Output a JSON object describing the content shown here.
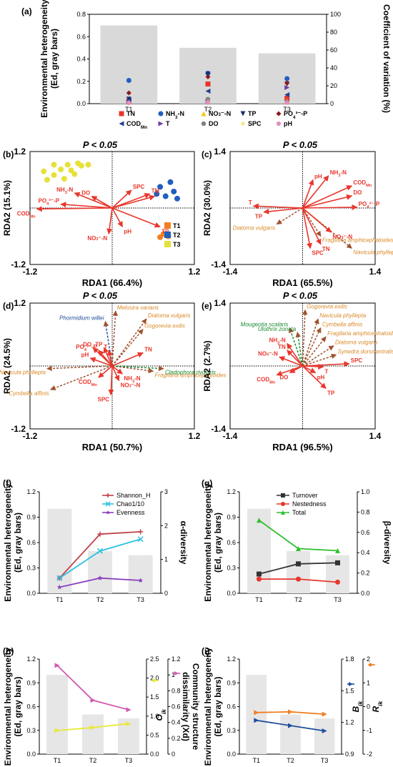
{
  "panels": {
    "a": {
      "label": "(a)"
    },
    "b": {
      "label": "(b)",
      "title": "P < 0.05"
    },
    "c": {
      "label": "(c)",
      "title": "P < 0.05"
    },
    "d": {
      "label": "(d)",
      "title": "P < 0.05"
    },
    "e": {
      "label": "(e)",
      "title": "P < 0.05"
    },
    "f": {
      "label": "(f)"
    },
    "g": {
      "label": "(g)"
    },
    "h": {
      "label": "(h)"
    },
    "i": {
      "label": "(i)"
    }
  },
  "colors": {
    "arrow_env": "#e8362b",
    "arrow_sp": "#a0522d",
    "sp_text": "#d98b2b",
    "blue_text": "#1f4e9c",
    "green_text": "#1a8a2e",
    "bar": "#d9d9d9"
  },
  "chart_data": [
    {
      "id": "a",
      "type": "bar",
      "categories": [
        "T1",
        "T2",
        "T3"
      ],
      "bar_values": [
        0.7,
        0.5,
        0.45
      ],
      "ylabel": "Environmental heterogeneity (Ed, gray bars)",
      "y2label": "Coefficient of variation (%)",
      "ylim": [
        0,
        0.8
      ],
      "yticks": [
        0,
        0.2,
        0.4,
        0.6,
        0.8
      ],
      "y2lim": [
        0,
        100
      ],
      "y2ticks": [
        0,
        20,
        40,
        60,
        80,
        100
      ],
      "series": [
        {
          "name": "TN",
          "color": "#e8362b",
          "marker": "square",
          "values": [
            3,
            22,
            6
          ]
        },
        {
          "name": "NH3-N",
          "color": "#1f5fbf",
          "marker": "circle",
          "values": [
            26,
            34,
            28
          ]
        },
        {
          "name": "NO3-N",
          "color": "#f2c80f",
          "marker": "triangle-up",
          "values": [
            2,
            4,
            3
          ]
        },
        {
          "name": "TP",
          "color": "#1b2f6e",
          "marker": "triangle-down",
          "values": [
            5,
            33,
            22
          ]
        },
        {
          "name": "PO4-P",
          "color": "#8b1a1a",
          "marker": "diamond",
          "values": [
            12,
            30,
            23
          ]
        },
        {
          "name": "CODMn",
          "color": "#1f3e8f",
          "marker": "triangle-left",
          "values": [
            4,
            14,
            10
          ]
        },
        {
          "name": "T",
          "color": "#6b3fa0",
          "marker": "triangle-right",
          "values": [
            2,
            3,
            18
          ]
        },
        {
          "name": "DO",
          "color": "#808080",
          "marker": "hexagon",
          "values": [
            1,
            5,
            2
          ]
        },
        {
          "name": "SPC",
          "color": "#f7e26b",
          "marker": "star",
          "values": [
            1,
            2,
            1
          ]
        },
        {
          "name": "pH",
          "color": "#e78ac3",
          "marker": "pentagon",
          "values": [
            1,
            1,
            1
          ]
        }
      ]
    },
    {
      "id": "b",
      "type": "scatter",
      "xlabel": "RDA1 (66.4%)",
      "ylabel": "RDA2 (15.1%)",
      "xlim": [
        -1.2,
        1.2
      ],
      "ylim": [
        -1.2,
        1.2
      ],
      "xticks": [
        -1.2,
        1.2
      ],
      "yticks": [
        -1.2,
        1.2
      ],
      "points": {
        "T1": {
          "color": "#f07f22",
          "xy": [
            [
              0.75,
              -0.55
            ],
            [
              0.82,
              -0.6
            ],
            [
              0.7,
              -0.62
            ]
          ]
        },
        "T2": {
          "color": "#1f5fbf",
          "xy": [
            [
              0.7,
              0.45
            ],
            [
              0.85,
              0.55
            ],
            [
              0.9,
              0.35
            ],
            [
              0.78,
              0.25
            ],
            [
              0.95,
              0.2
            ],
            [
              0.65,
              0.3
            ]
          ]
        },
        "T3": {
          "color": "#e6e03a",
          "xy": [
            [
              -1.0,
              0.78
            ],
            [
              -0.95,
              0.6
            ],
            [
              -0.85,
              0.7
            ],
            [
              -0.75,
              0.82
            ],
            [
              -0.7,
              0.62
            ],
            [
              -0.6,
              0.8
            ],
            [
              -0.55,
              0.72
            ],
            [
              -0.65,
              0.92
            ],
            [
              -0.5,
              0.95
            ],
            [
              -0.45,
              0.9
            ],
            [
              -0.85,
              0.92
            ],
            [
              -0.35,
              0.92
            ]
          ]
        }
      },
      "legend": [
        "T1",
        "T2",
        "T3"
      ],
      "vectors": [
        {
          "name": "NH3-N",
          "xy": [
            -0.55,
            0.32
          ]
        },
        {
          "name": "DO",
          "xy": [
            -0.3,
            0.25
          ]
        },
        {
          "name": "PO4-P",
          "xy": [
            -0.75,
            0.08
          ]
        },
        {
          "name": "CODMn",
          "xy": [
            -1.1,
            -0.02
          ]
        },
        {
          "name": "SPC",
          "xy": [
            0.28,
            0.38
          ]
        },
        {
          "name": "TN",
          "xy": [
            0.55,
            0.3
          ]
        },
        {
          "name": "T",
          "xy": [
            0.62,
            0.25
          ]
        },
        {
          "name": "NO3-N",
          "xy": [
            -0.05,
            -0.55
          ]
        },
        {
          "name": "pH",
          "xy": [
            0.15,
            -0.4
          ]
        },
        {
          "name": "TP",
          "xy": [
            0.7,
            -0.4
          ]
        }
      ]
    },
    {
      "id": "c",
      "type": "scatter",
      "xlabel": "RDA1 (65.5%)",
      "ylabel": "RDA2 (30.0%)",
      "xlim": [
        -1.4,
        1.4
      ],
      "ylim": [
        -1.4,
        1.4
      ],
      "xticks": [
        -1.4,
        1.4
      ],
      "yticks": [
        -1.4,
        1.4
      ],
      "vectors": [
        {
          "name": "pH",
          "xy": [
            0.2,
            0.7
          ]
        },
        {
          "name": "NH3-N",
          "xy": [
            0.5,
            0.8
          ]
        },
        {
          "name": "CODMn",
          "xy": [
            0.95,
            0.55
          ]
        },
        {
          "name": "DO",
          "xy": [
            0.95,
            0.3
          ]
        },
        {
          "name": "PO4-P",
          "xy": [
            1.05,
            0.02
          ]
        },
        {
          "name": "T",
          "xy": [
            -0.95,
            0.05
          ]
        },
        {
          "name": "TP",
          "xy": [
            -0.75,
            -0.1
          ]
        },
        {
          "name": "NO3-N",
          "xy": [
            0.55,
            -0.6
          ]
        },
        {
          "name": "TN",
          "xy": [
            0.35,
            -0.9
          ]
        },
        {
          "name": "SPC",
          "xy": [
            0.15,
            -1.0
          ]
        }
      ],
      "species": [
        {
          "name": "Diatoma vulgaris",
          "xy": [
            -0.5,
            -0.4
          ]
        },
        {
          "name": "Fragilaria amphicephaloides",
          "xy": [
            0.35,
            -0.7
          ]
        },
        {
          "name": "Navicula phyllepta",
          "xy": [
            0.95,
            -1.0
          ]
        }
      ]
    },
    {
      "id": "d",
      "type": "scatter",
      "xlabel": "RDA1 (50.7%)",
      "ylabel": "RDA2 (24.5%)",
      "xlim": [
        -1.2,
        1.2
      ],
      "ylim": [
        -1.2,
        1.2
      ],
      "xticks": [
        -1.2,
        1.2
      ],
      "yticks": [
        -1.2,
        1.2
      ],
      "vectors": [
        {
          "name": "TP",
          "xy": [
            -0.12,
            0.35
          ]
        },
        {
          "name": "DO",
          "xy": [
            -0.28,
            0.35
          ]
        },
        {
          "name": "PO4-P",
          "xy": [
            -0.2,
            0.3
          ]
        },
        {
          "name": "T",
          "xy": [
            -0.05,
            0.3
          ]
        },
        {
          "name": "pH",
          "xy": [
            -0.32,
            0.15
          ]
        },
        {
          "name": "CODMn",
          "xy": [
            -0.2,
            -0.22
          ]
        },
        {
          "name": "NH3-N",
          "xy": [
            0.15,
            -0.15
          ]
        },
        {
          "name": "NO3-N",
          "xy": [
            0.1,
            -0.28
          ]
        },
        {
          "name": "SPC",
          "xy": [
            -0.02,
            -0.55
          ]
        },
        {
          "name": "TN",
          "xy": [
            0.45,
            0.25
          ]
        }
      ],
      "species": [
        {
          "name": "Melosira varians",
          "color": "sp",
          "xy": [
            0.05,
            1.05
          ]
        },
        {
          "name": "Diatoma vulgaris",
          "color": "sp",
          "xy": [
            0.5,
            0.9
          ]
        },
        {
          "name": "Gogorevia exilis",
          "color": "sp",
          "xy": [
            0.45,
            0.7
          ]
        },
        {
          "name": "Phormidium willei",
          "color": "blue",
          "xy": [
            -0.1,
            0.85
          ]
        },
        {
          "name": "Navicula phyllepta",
          "color": "sp",
          "xy": [
            -0.95,
            -0.05
          ]
        },
        {
          "name": "Cymbella affinis",
          "color": "sp",
          "xy": [
            -0.9,
            -0.45
          ]
        },
        {
          "name": "Fragilaria amphicephaloides",
          "color": "sp",
          "xy": [
            0.6,
            -0.1
          ]
        },
        {
          "name": "Cladophora rivularis",
          "color": "green",
          "xy": [
            0.75,
            -0.05
          ]
        }
      ]
    },
    {
      "id": "e",
      "type": "scatter",
      "xlabel": "RDA1 (96.5%)",
      "ylabel": "RDA2 (2.7%)",
      "xlim": [
        -1.4,
        1.4
      ],
      "ylim": [
        -1.4,
        1.4
      ],
      "xticks": [
        -1.4,
        1.4
      ],
      "yticks": [
        -1.4,
        1.4
      ],
      "vectors": [
        {
          "name": "NH3-N",
          "xy": [
            -0.3,
            0.5
          ]
        },
        {
          "name": "TN",
          "xy": [
            -0.3,
            0.35
          ]
        },
        {
          "name": "NO3-N",
          "xy": [
            -0.45,
            0.2
          ]
        },
        {
          "name": "CODMn",
          "xy": [
            -0.5,
            -0.2
          ]
        },
        {
          "name": "DO",
          "xy": [
            -0.25,
            -0.15
          ]
        },
        {
          "name": "SPC",
          "xy": [
            0.9,
            0.05
          ]
        },
        {
          "name": "pH",
          "xy": [
            0.25,
            -0.15
          ]
        },
        {
          "name": "TP",
          "xy": [
            0.45,
            -0.5
          ]
        },
        {
          "name": "T",
          "xy": [
            0.4,
            -0.02
          ]
        }
      ],
      "species": [
        {
          "name": "Gogorevia exilis",
          "color": "sp",
          "xy": [
            0.05,
            1.25
          ]
        },
        {
          "name": "Navicula phyllepta",
          "color": "sp",
          "xy": [
            0.3,
            1.05
          ]
        },
        {
          "name": "Cymbella affinis",
          "color": "sp",
          "xy": [
            0.35,
            0.85
          ]
        },
        {
          "name": "Fragilaria amphicephaloides",
          "color": "sp",
          "xy": [
            0.45,
            0.65
          ]
        },
        {
          "name": "Diatoma vulgaris",
          "color": "sp",
          "xy": [
            0.6,
            0.45
          ]
        },
        {
          "name": "Synedra dorsiventralis",
          "color": "sp",
          "xy": [
            0.65,
            0.25
          ]
        },
        {
          "name": "Mougeotia scalaris",
          "color": "green",
          "xy": [
            -0.25,
            0.85
          ]
        },
        {
          "name": "Ulothrix zonata",
          "color": "green",
          "xy": [
            -0.1,
            0.75
          ]
        }
      ]
    },
    {
      "id": "f",
      "type": "line",
      "categories": [
        "T1",
        "T2",
        "T3"
      ],
      "bar_values": [
        1.0,
        0.5,
        0.45
      ],
      "ylabel": "Environmental heterogeneity (Ed, gray bars)",
      "y2label": "α-diversity",
      "ylim": [
        0,
        1.2
      ],
      "yticks": [
        0.0,
        0.3,
        0.6,
        0.9,
        1.2
      ],
      "y2lim": [
        0,
        3
      ],
      "y2ticks": [
        0,
        1,
        2,
        3
      ],
      "series": [
        {
          "name": "Shannon_H",
          "color": "#c0404a",
          "marker": "plus",
          "values": [
            0.45,
            1.75,
            1.82
          ]
        },
        {
          "name": "Chao1/10",
          "color": "#2bc0e0",
          "marker": "x",
          "values": [
            0.45,
            1.25,
            1.6
          ]
        },
        {
          "name": "Evenness",
          "color": "#8a3fbf",
          "marker": "star",
          "values": [
            0.18,
            0.45,
            0.38
          ]
        }
      ]
    },
    {
      "id": "g",
      "type": "line",
      "categories": [
        "T1",
        "T2",
        "T3"
      ],
      "bar_values": [
        1.0,
        0.5,
        0.45
      ],
      "ylabel": "Environmental heterogeneity (Ed, gray bars)",
      "y2label": "β-diversity",
      "ylim": [
        0,
        1.2
      ],
      "yticks": [
        0.0,
        0.3,
        0.6,
        0.9,
        1.2
      ],
      "y2lim": [
        0,
        1.0
      ],
      "y2ticks": [
        0.0,
        0.2,
        0.4,
        0.6,
        0.8,
        1.0
      ],
      "series": [
        {
          "name": "Turnover",
          "color": "#333333",
          "marker": "square",
          "values": [
            0.19,
            0.29,
            0.3
          ]
        },
        {
          "name": "Nestedness",
          "color": "#e8362b",
          "marker": "circle",
          "values": [
            0.14,
            0.14,
            0.11
          ]
        },
        {
          "name": "Total",
          "color": "#2ec02e",
          "marker": "triangle-up",
          "values": [
            0.72,
            0.44,
            0.42
          ]
        }
      ]
    },
    {
      "id": "h",
      "type": "line",
      "categories": [
        "T1",
        "T2",
        "T3"
      ],
      "bar_values": [
        1.0,
        0.5,
        0.45
      ],
      "ylabel": "Environmental heterogeneity (Ed, gray bars)",
      "y2label": "Oik",
      "y3label": "Community structure dissimilarity (Xd)",
      "ylim": [
        0,
        1.2
      ],
      "yticks": [
        0.0,
        0.3,
        0.6,
        0.9,
        1.2
      ],
      "y2lim": [
        0,
        2.5
      ],
      "y2ticks": [
        0.0,
        0.5,
        1.0,
        1.5,
        2.0,
        2.5
      ],
      "y3lim": [
        0,
        1.2
      ],
      "y3ticks": [
        0.0,
        0.2,
        0.4,
        0.6,
        0.8,
        1.0,
        1.2
      ],
      "series": [
        {
          "name": "Oik",
          "color": "#e8e83a",
          "marker": "triangle-right",
          "axis": "y2",
          "values": [
            0.62,
            0.7,
            0.8
          ]
        },
        {
          "name": "Xd",
          "color": "#d05ab0",
          "marker": "triangle-right",
          "axis": "y3",
          "values": [
            1.12,
            0.68,
            0.56
          ]
        }
      ]
    },
    {
      "id": "i",
      "type": "line",
      "categories": [
        "T1",
        "T2",
        "T3"
      ],
      "bar_values": [
        1.0,
        0.5,
        0.45
      ],
      "ylabel": "Environmental heterogeneity (Ed, gray bars)",
      "y2label": "Bik",
      "y3label": "Rik",
      "ylim": [
        0,
        1.2
      ],
      "yticks": [
        0.0,
        0.3,
        0.6,
        0.9,
        1.2
      ],
      "y2lim": [
        0.9,
        1.8
      ],
      "y2ticks": [
        0.9,
        1.2,
        1.5,
        1.8
      ],
      "y3lim": [
        -2,
        2
      ],
      "y3ticks": [
        -2,
        -1,
        0,
        1,
        2
      ],
      "series": [
        {
          "name": "Bik",
          "color": "#1f4e9c",
          "marker": "triangle-right",
          "axis": "y2",
          "values": [
            1.22,
            1.17,
            1.12
          ]
        },
        {
          "name": "Rik",
          "color": "#f07f22",
          "marker": "triangle-right",
          "axis": "y3",
          "values": [
            -0.25,
            -0.22,
            -0.32
          ]
        }
      ]
    }
  ]
}
